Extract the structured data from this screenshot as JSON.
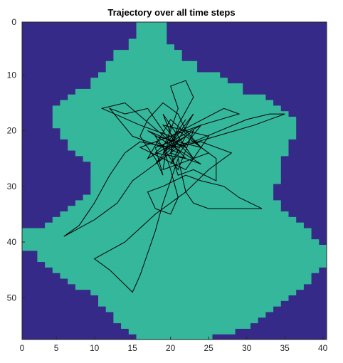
{
  "chart_data": {
    "type": "heatmap",
    "title": "Trajectory over all time steps",
    "xlabel": "",
    "ylabel": "",
    "xlim": [
      0.5,
      40.5
    ],
    "ylim": [
      0.5,
      57.5
    ],
    "y_reversed": true,
    "grid": false,
    "x_ticks": [
      0,
      5,
      10,
      15,
      20,
      25,
      30,
      35,
      40
    ],
    "y_ticks": [
      0,
      10,
      20,
      30,
      40,
      50
    ],
    "colors": {
      "outside": "#352a87",
      "region": "#35b79b",
      "trajectory": "#000000",
      "axis": "#262626"
    },
    "region_rows": [
      [
        16,
        19
      ],
      [
        16,
        19
      ],
      [
        16,
        19
      ],
      [
        15,
        19
      ],
      [
        15,
        20
      ],
      [
        13,
        21
      ],
      [
        13,
        21
      ],
      [
        12,
        23
      ],
      [
        12,
        23
      ],
      [
        11,
        26
      ],
      [
        10,
        27
      ],
      [
        10,
        29
      ],
      [
        8,
        29
      ],
      [
        7,
        32
      ],
      [
        6,
        33
      ],
      [
        5,
        34
      ],
      [
        5,
        35
      ],
      [
        5,
        36
      ],
      [
        5,
        36
      ],
      [
        6,
        36
      ],
      [
        6,
        36
      ],
      [
        7,
        35
      ],
      [
        7,
        35
      ],
      [
        8,
        35
      ],
      [
        9,
        34
      ],
      [
        10,
        34
      ],
      [
        10,
        34
      ],
      [
        10,
        34
      ],
      [
        10,
        34
      ],
      [
        10,
        33
      ],
      [
        10,
        33
      ],
      [
        9,
        33
      ],
      [
        8,
        34
      ],
      [
        7,
        34
      ],
      [
        6,
        35
      ],
      [
        5,
        36
      ],
      [
        4,
        37
      ],
      [
        1,
        38
      ],
      [
        1,
        38
      ],
      [
        1,
        39
      ],
      [
        1,
        40
      ],
      [
        3,
        40
      ],
      [
        3,
        40
      ],
      [
        4,
        40
      ],
      [
        5,
        39
      ],
      [
        6,
        38
      ],
      [
        7,
        38
      ],
      [
        8,
        37
      ],
      [
        10,
        36
      ],
      [
        11,
        35
      ],
      [
        11,
        34
      ],
      [
        12,
        33
      ],
      [
        13,
        32
      ],
      [
        13,
        31
      ],
      [
        14,
        30
      ],
      [
        15,
        28
      ],
      [
        16,
        25
      ]
    ],
    "trajectory": [
      [
        20,
        22
      ],
      [
        22,
        18
      ],
      [
        19,
        24
      ],
      [
        23,
        20
      ],
      [
        21,
        27
      ],
      [
        18,
        21
      ],
      [
        24,
        23
      ],
      [
        20,
        18
      ],
      [
        17,
        25
      ],
      [
        22,
        21
      ],
      [
        20,
        26
      ],
      [
        24,
        19
      ],
      [
        18,
        22
      ],
      [
        21,
        24
      ],
      [
        19,
        17
      ],
      [
        23,
        25
      ],
      [
        20,
        21
      ],
      [
        16,
        23
      ],
      [
        22,
        27
      ],
      [
        25,
        21
      ],
      [
        19,
        19
      ],
      [
        21,
        22
      ],
      [
        18,
        26
      ],
      [
        23,
        17
      ],
      [
        20,
        24
      ],
      [
        24,
        26
      ],
      [
        17,
        20
      ],
      [
        22,
        23
      ],
      [
        20,
        19
      ],
      [
        19,
        27
      ],
      [
        25,
        24
      ],
      [
        21,
        20
      ],
      [
        18,
        24
      ],
      [
        22,
        25
      ],
      [
        20,
        22
      ],
      [
        14,
        15
      ],
      [
        11,
        16
      ],
      [
        16,
        19
      ],
      [
        20,
        21
      ],
      [
        27,
        16
      ],
      [
        29,
        17
      ],
      [
        24,
        19
      ],
      [
        20,
        22
      ],
      [
        17,
        16
      ],
      [
        14,
        17
      ],
      [
        12,
        16
      ],
      [
        15,
        21
      ],
      [
        19,
        23
      ],
      [
        23,
        22
      ],
      [
        30,
        18
      ],
      [
        33,
        17
      ],
      [
        35,
        17
      ],
      [
        31,
        19
      ],
      [
        26,
        21
      ],
      [
        21,
        23
      ],
      [
        18,
        26
      ],
      [
        15,
        29
      ],
      [
        13,
        33
      ],
      [
        10,
        36
      ],
      [
        6,
        39
      ],
      [
        8,
        37
      ],
      [
        10,
        33
      ],
      [
        12,
        28
      ],
      [
        14,
        24
      ],
      [
        16,
        22
      ],
      [
        20,
        23
      ],
      [
        24,
        22
      ],
      [
        28,
        24
      ],
      [
        25,
        27
      ],
      [
        22,
        31
      ],
      [
        18,
        35
      ],
      [
        14,
        40
      ],
      [
        10,
        43
      ],
      [
        12,
        45
      ],
      [
        15,
        49
      ],
      [
        16,
        46
      ],
      [
        18,
        38
      ],
      [
        19,
        33
      ],
      [
        20,
        29
      ],
      [
        21,
        25
      ],
      [
        22,
        31
      ],
      [
        23,
        33
      ],
      [
        25,
        34
      ],
      [
        28,
        34
      ],
      [
        32,
        34
      ],
      [
        29,
        32
      ],
      [
        27,
        30
      ],
      [
        24,
        29
      ],
      [
        22,
        28
      ],
      [
        19,
        30
      ],
      [
        17,
        31
      ],
      [
        18,
        34
      ],
      [
        20,
        35
      ],
      [
        21,
        32
      ],
      [
        20,
        27
      ],
      [
        19,
        23
      ],
      [
        20,
        20
      ],
      [
        21,
        16
      ],
      [
        20,
        12
      ],
      [
        22,
        11
      ],
      [
        23,
        14
      ],
      [
        21,
        19
      ],
      [
        20,
        24
      ],
      [
        21,
        28
      ],
      [
        23,
        27
      ],
      [
        26,
        29
      ],
      [
        26,
        25
      ],
      [
        24,
        23
      ],
      [
        22,
        20
      ],
      [
        21,
        17
      ],
      [
        19,
        15
      ],
      [
        17,
        18
      ],
      [
        16,
        21
      ],
      [
        18,
        25
      ],
      [
        19,
        28
      ],
      [
        18,
        23
      ],
      [
        20,
        22
      ]
    ]
  }
}
